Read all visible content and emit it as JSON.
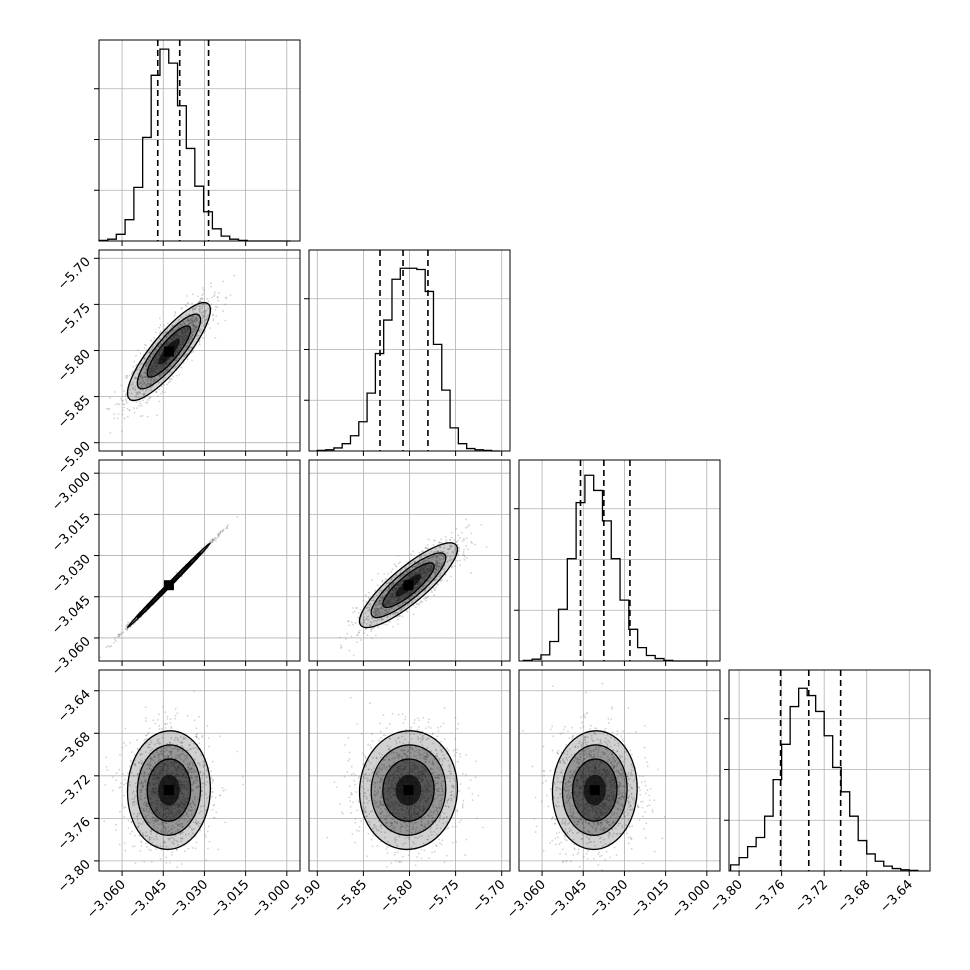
{
  "chart_data": {
    "type": "corner",
    "parameters": [
      {
        "ticks": [
          -3.06,
          -3.045,
          -3.03,
          -3.015,
          -3.0
        ],
        "tick_labels": [
          "−3.060",
          "−3.045",
          "−3.030",
          "−3.015",
          "−3.000"
        ],
        "range": [
          -3.0684,
          -2.9952
        ],
        "quantiles": [
          -3.047,
          -3.039,
          -3.0285
        ],
        "hist_bins": [
          -3.0684,
          -3.0652,
          -3.0621,
          -3.0589,
          -3.0557,
          -3.0525,
          -3.0494,
          -3.0462,
          -3.043,
          -3.0398,
          -3.0366,
          -3.0335,
          -3.0303,
          -3.0271,
          -3.0239,
          -3.0208,
          -3.0176,
          -3.0144,
          -3.0112,
          -3.008,
          -3.0049,
          -3.0017,
          -2.9985
        ],
        "hist_counts": [
          1,
          3,
          11,
          35,
          88,
          170,
          272,
          315,
          292,
          222,
          152,
          90,
          48,
          20,
          8,
          3,
          1,
          0,
          0,
          0,
          0,
          0
        ],
        "hist_ylim": [
          0,
          330
        ]
      },
      {
        "ticks": [
          -5.9,
          -5.85,
          -5.8,
          -5.75,
          -5.7
        ],
        "tick_labels": [
          "−5.90",
          "−5.85",
          "−5.80",
          "−5.75",
          "−5.70"
        ],
        "range": [
          -5.909,
          -5.691
        ],
        "quantiles": [
          -5.832,
          -5.807,
          -5.78
        ],
        "hist_bins": [
          -5.9,
          -5.891,
          -5.882,
          -5.873,
          -5.864,
          -5.855,
          -5.846,
          -5.837,
          -5.828,
          -5.819,
          -5.81,
          -5.801,
          -5.792,
          -5.783,
          -5.774,
          -5.765,
          -5.756,
          -5.747,
          -5.738,
          -5.729,
          -5.72,
          -5.711,
          -5.702
        ],
        "hist_counts": [
          1,
          2,
          5,
          12,
          25,
          48,
          95,
          160,
          215,
          282,
          300,
          300,
          298,
          262,
          175,
          100,
          38,
          12,
          4,
          2,
          1,
          0
        ],
        "hist_ylim": [
          0,
          330
        ]
      },
      {
        "ticks": [
          -3.06,
          -3.045,
          -3.03,
          -3.015,
          -3.0
        ],
        "tick_labels": [
          "−3.060",
          "−3.045",
          "−3.030",
          "−3.015",
          "−3.000"
        ],
        "range": [
          -3.0684,
          -2.9952
        ],
        "quantiles": [
          -3.046,
          -3.0375,
          -3.028
        ],
        "hist_bins": [
          -3.0668,
          -3.0636,
          -3.0604,
          -3.0572,
          -3.054,
          -3.0508,
          -3.0476,
          -3.0444,
          -3.0412,
          -3.038,
          -3.0348,
          -3.0316,
          -3.0284,
          -3.0252,
          -3.022,
          -3.0188,
          -3.0156,
          -3.0124,
          -3.0092,
          -3.006,
          -3.0028,
          -2.9996
        ],
        "hist_counts": [
          1,
          3,
          10,
          32,
          85,
          168,
          260,
          305,
          280,
          230,
          168,
          100,
          52,
          22,
          9,
          4,
          1,
          0,
          0,
          0,
          0
        ],
        "hist_ylim": [
          0,
          330
        ]
      },
      {
        "ticks": [
          -3.8,
          -3.76,
          -3.72,
          -3.68,
          -3.64
        ],
        "tick_labels": [
          "−3.80",
          "−3.76",
          "−3.72",
          "−3.68",
          "−3.64"
        ],
        "range": [
          -3.8095,
          -3.6205
        ],
        "quantiles": [
          -3.761,
          -3.7345,
          -3.7045
        ],
        "hist_bins": [
          -3.808,
          -3.8,
          -3.792,
          -3.784,
          -3.776,
          -3.768,
          -3.76,
          -3.752,
          -3.744,
          -3.736,
          -3.728,
          -3.72,
          -3.712,
          -3.704,
          -3.696,
          -3.688,
          -3.68,
          -3.672,
          -3.664,
          -3.656,
          -3.648,
          -3.64,
          -3.632
        ],
        "hist_counts": [
          10,
          22,
          40,
          55,
          90,
          150,
          208,
          270,
          300,
          288,
          262,
          222,
          170,
          130,
          90,
          50,
          28,
          16,
          8,
          4,
          2,
          1
        ],
        "hist_ylim": [
          0,
          330
        ]
      }
    ],
    "density_shade": "#000000",
    "line_color": "#000000",
    "grid": true,
    "scatter_color": "#808080"
  }
}
